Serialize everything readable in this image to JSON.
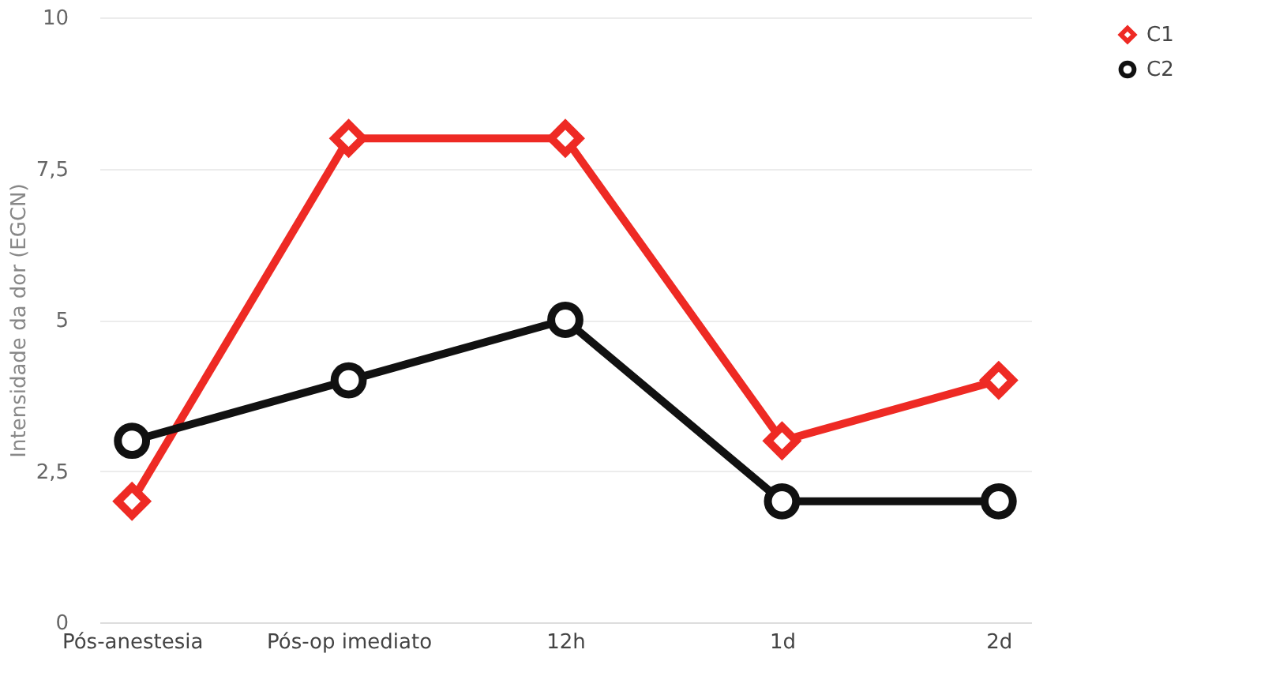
{
  "chart_data": {
    "type": "line",
    "ylabel": "Intensidade da dor (EGCN)",
    "categories": [
      "Pós-anestesia",
      "Pós-op imediato",
      "12h",
      "1d",
      "2d"
    ],
    "series": [
      {
        "name": "C1",
        "color": "#ee2a24",
        "marker": "diamond",
        "values": [
          2,
          8,
          8,
          3,
          4
        ]
      },
      {
        "name": "C2",
        "color": "#111111",
        "marker": "circle",
        "values": [
          3,
          4,
          5,
          2,
          2
        ]
      }
    ],
    "ylim": [
      0,
      10
    ],
    "yticks": [
      0,
      {
        "value": 2.5,
        "label": "2,5"
      },
      5,
      {
        "value": 7.5,
        "label": "7,5"
      },
      10
    ],
    "grid": "y",
    "legend": "top right",
    "line_style": "solid"
  }
}
